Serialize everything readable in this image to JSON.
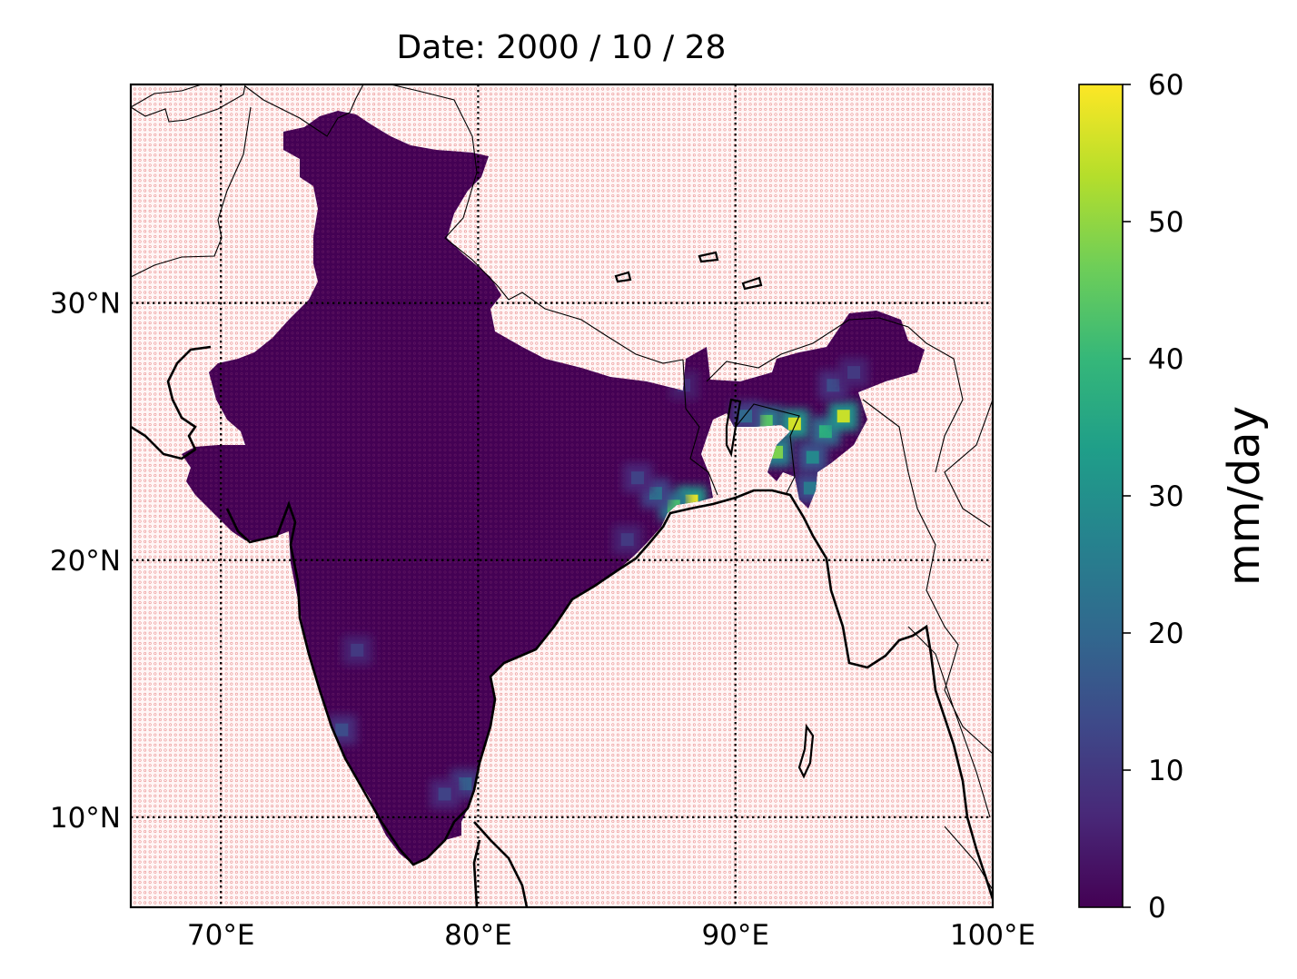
{
  "title": "Date: 2000 / 10 / 28",
  "map": {
    "lon_range": [
      66.5,
      100
    ],
    "lat_range": [
      6.5,
      38.5
    ],
    "lon_ticks": [
      {
        "value": 70,
        "label": "70°E"
      },
      {
        "value": 80,
        "label": "80°E"
      },
      {
        "value": 90,
        "label": "90°E"
      },
      {
        "value": 100,
        "label": "100°E"
      }
    ],
    "lat_ticks": [
      {
        "value": 10,
        "label": "10°N"
      },
      {
        "value": 20,
        "label": "20°N"
      },
      {
        "value": 30,
        "label": "30°N"
      }
    ],
    "gridlines": true,
    "gridline_style": "dotted",
    "masked_region_hatch_color": "#e06060",
    "land_fill_color": "#440154",
    "coastline_color": "#000000"
  },
  "colorbar": {
    "label": "mm/day",
    "min": 0,
    "max": 60,
    "ticks": [
      {
        "value": 0,
        "label": "0"
      },
      {
        "value": 10,
        "label": "10"
      },
      {
        "value": 20,
        "label": "20"
      },
      {
        "value": 30,
        "label": "30"
      },
      {
        "value": 40,
        "label": "40"
      },
      {
        "value": 50,
        "label": "50"
      },
      {
        "value": 60,
        "label": "60"
      }
    ],
    "colormap": "viridis",
    "stops": [
      "#440154",
      "#482878",
      "#3e4989",
      "#31688e",
      "#26828e",
      "#1f9e89",
      "#35b779",
      "#6ece58",
      "#b5de2b",
      "#fde725"
    ]
  },
  "rainfall_hotspots": [
    {
      "lon": 88.3,
      "lat": 22.3,
      "value": 58
    },
    {
      "lon": 87.6,
      "lat": 22.1,
      "value": 42
    },
    {
      "lon": 86.9,
      "lat": 22.6,
      "value": 22
    },
    {
      "lon": 86.2,
      "lat": 23.2,
      "value": 12
    },
    {
      "lon": 85.8,
      "lat": 20.8,
      "value": 10
    },
    {
      "lon": 92.3,
      "lat": 25.3,
      "value": 56
    },
    {
      "lon": 91.6,
      "lat": 24.2,
      "value": 48
    },
    {
      "lon": 91.2,
      "lat": 25.4,
      "value": 44
    },
    {
      "lon": 93.5,
      "lat": 25.0,
      "value": 38
    },
    {
      "lon": 94.2,
      "lat": 25.6,
      "value": 55
    },
    {
      "lon": 93.0,
      "lat": 24.0,
      "value": 28
    },
    {
      "lon": 92.9,
      "lat": 22.8,
      "value": 24
    },
    {
      "lon": 90.4,
      "lat": 25.6,
      "value": 20
    },
    {
      "lon": 93.8,
      "lat": 26.8,
      "value": 14
    },
    {
      "lon": 94.6,
      "lat": 27.3,
      "value": 10
    },
    {
      "lon": 88.0,
      "lat": 26.8,
      "value": 8
    },
    {
      "lon": 74.7,
      "lat": 13.4,
      "value": 14
    },
    {
      "lon": 79.5,
      "lat": 11.3,
      "value": 18
    },
    {
      "lon": 78.7,
      "lat": 10.9,
      "value": 12
    },
    {
      "lon": 75.3,
      "lat": 16.5,
      "value": 10
    }
  ]
}
